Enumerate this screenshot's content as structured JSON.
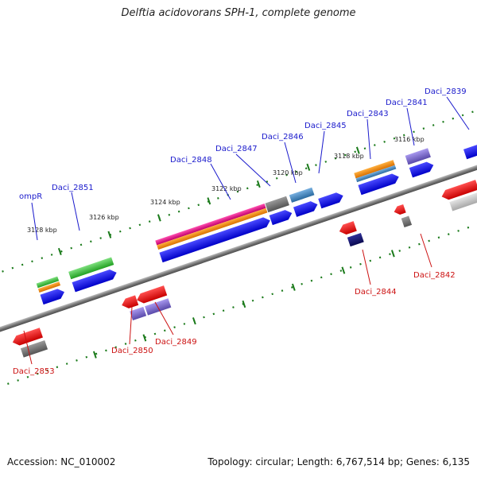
{
  "title": "Delftia acidovorans SPH-1, complete genome",
  "footer": {
    "accession": "Accession: NC_010002",
    "topology": "Topology: circular; Length: 6,767,514 bp; Genes: 6,135"
  },
  "ticks": [
    "3128 kbp",
    "3126 kbp",
    "3124 kbp",
    "3122 kbp",
    "3120 kbp",
    "3118 kbp",
    "3116 kbp"
  ],
  "genes_forward": [
    "ompR",
    "Daci_2851",
    "Daci_2848",
    "Daci_2847",
    "Daci_2846",
    "Daci_2845",
    "Daci_2843",
    "Daci_2841",
    "Daci_2839"
  ],
  "genes_reverse": [
    "Daci_2853",
    "Daci_2850",
    "Daci_2849",
    "Daci_2844",
    "Daci_2842"
  ],
  "colors": {
    "forward_label": "#1a1acc",
    "reverse_label": "#cc1111",
    "cds": "#0a0ae8",
    "gene_red": "#ee1111",
    "gene_gray": "#777777",
    "gene_green": "#3cc43c",
    "gene_orange": "#f08c10",
    "gene_magenta": "#e0108a",
    "gene_purple": "#7a6acc",
    "gene_navy": "#14146e",
    "gene_steel": "#4a86c0",
    "backbone": "#888888",
    "tick": "#1a7a1a"
  }
}
